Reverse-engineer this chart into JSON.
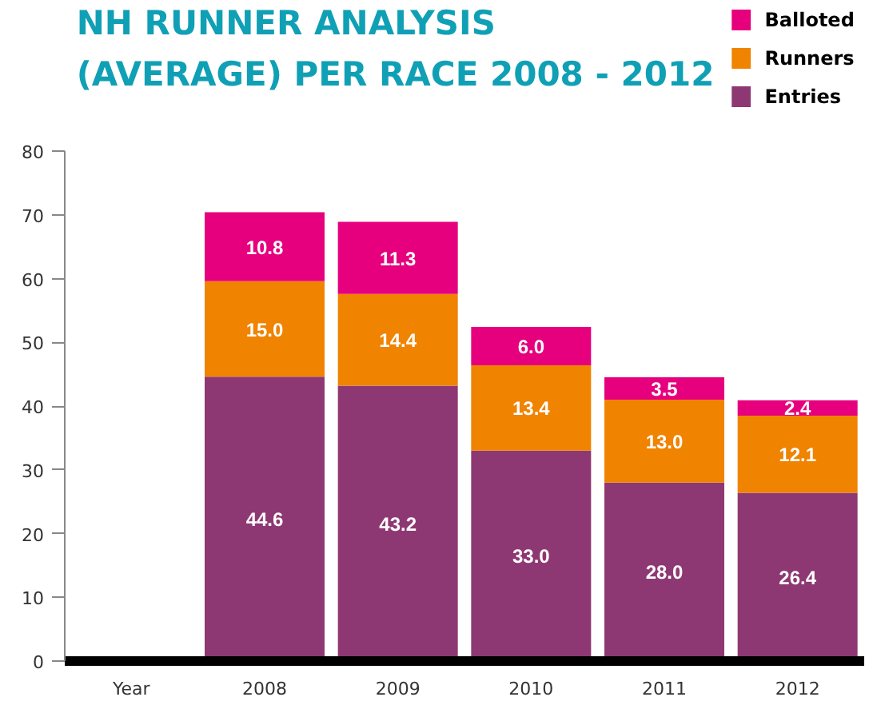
{
  "chart_data": {
    "type": "bar",
    "stacked": true,
    "title": "NH RUNNER ANALYSIS (AVERAGE) PER RACE 2008 - 2012",
    "xlabel": "Year",
    "categories": [
      "2008",
      "2009",
      "2010",
      "2011",
      "2012"
    ],
    "series": [
      {
        "name": "Entries",
        "color": "#8e3873",
        "values": [
          44.6,
          43.2,
          33.0,
          28.0,
          26.4
        ],
        "value_labels": [
          "44.6",
          "43.2",
          "33.0",
          "28.0",
          "26.4"
        ]
      },
      {
        "name": "Runners",
        "color": "#f08300",
        "values": [
          15.0,
          14.4,
          13.4,
          13.0,
          12.1
        ],
        "value_labels": [
          "15.0",
          "14.4",
          "13.4",
          "13.0",
          "12.1"
        ]
      },
      {
        "name": "Balloted",
        "color": "#e6007e",
        "values": [
          10.8,
          11.3,
          6.0,
          3.5,
          2.4
        ],
        "value_labels": [
          "10.8",
          "11.3",
          "6.0",
          "3.5",
          "2.4"
        ]
      }
    ],
    "ylim": [
      0,
      80
    ],
    "yticks": [
      0,
      10,
      20,
      30,
      40,
      50,
      60,
      70,
      80
    ],
    "legend": "top right",
    "grid": false
  }
}
